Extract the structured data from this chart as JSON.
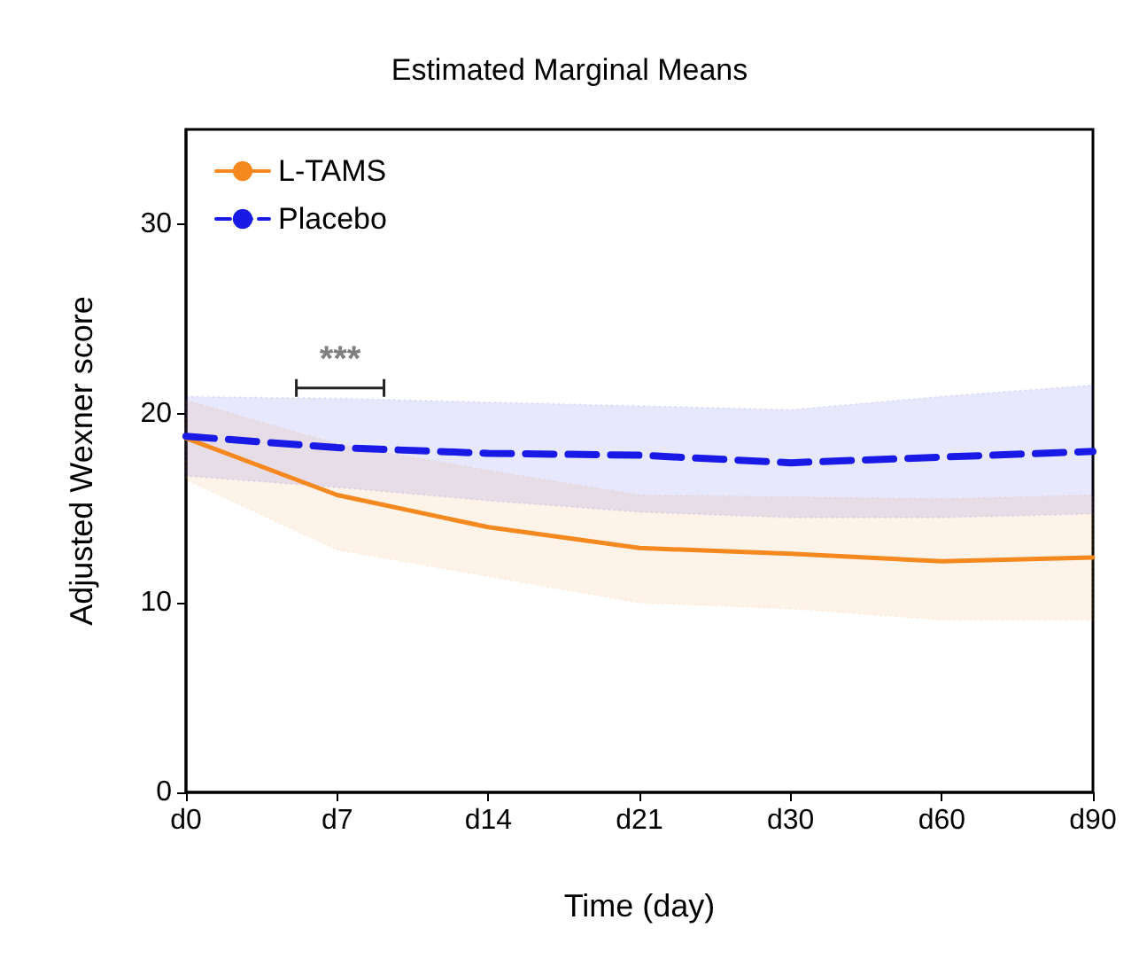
{
  "chart_data": {
    "type": "line",
    "title": "Estimated Marginal Means",
    "xlabel": "Time (day)",
    "ylabel": "Adjusted Wexner score",
    "categories": [
      "d0",
      "d7",
      "d14",
      "d21",
      "d30",
      "d60",
      "d90"
    ],
    "series": [
      {
        "name": "L-TAMS",
        "color": "#f5891f",
        "line_style": "solid",
        "values": [
          18.7,
          15.7,
          14.0,
          12.9,
          12.6,
          12.2,
          12.4
        ],
        "lower": [
          16.5,
          12.8,
          11.4,
          10.0,
          9.7,
          9.1,
          9.1
        ],
        "upper": [
          20.7,
          18.4,
          17.0,
          15.7,
          15.6,
          15.5,
          15.7
        ]
      },
      {
        "name": "Placebo",
        "color": "#1a1ae6",
        "line_style": "dashed",
        "values": [
          18.8,
          18.2,
          17.9,
          17.8,
          17.4,
          17.7,
          18.0
        ],
        "lower": [
          16.7,
          16.1,
          15.4,
          14.8,
          14.5,
          14.5,
          14.7
        ],
        "upper": [
          20.9,
          20.8,
          20.6,
          20.4,
          20.2,
          20.9,
          21.5
        ]
      }
    ],
    "ylim": [
      0,
      35
    ],
    "yticks": [
      0,
      10,
      20,
      30
    ],
    "grid": false,
    "legend": "top left",
    "marker": "none",
    "annotations": [
      "***"
    ]
  }
}
